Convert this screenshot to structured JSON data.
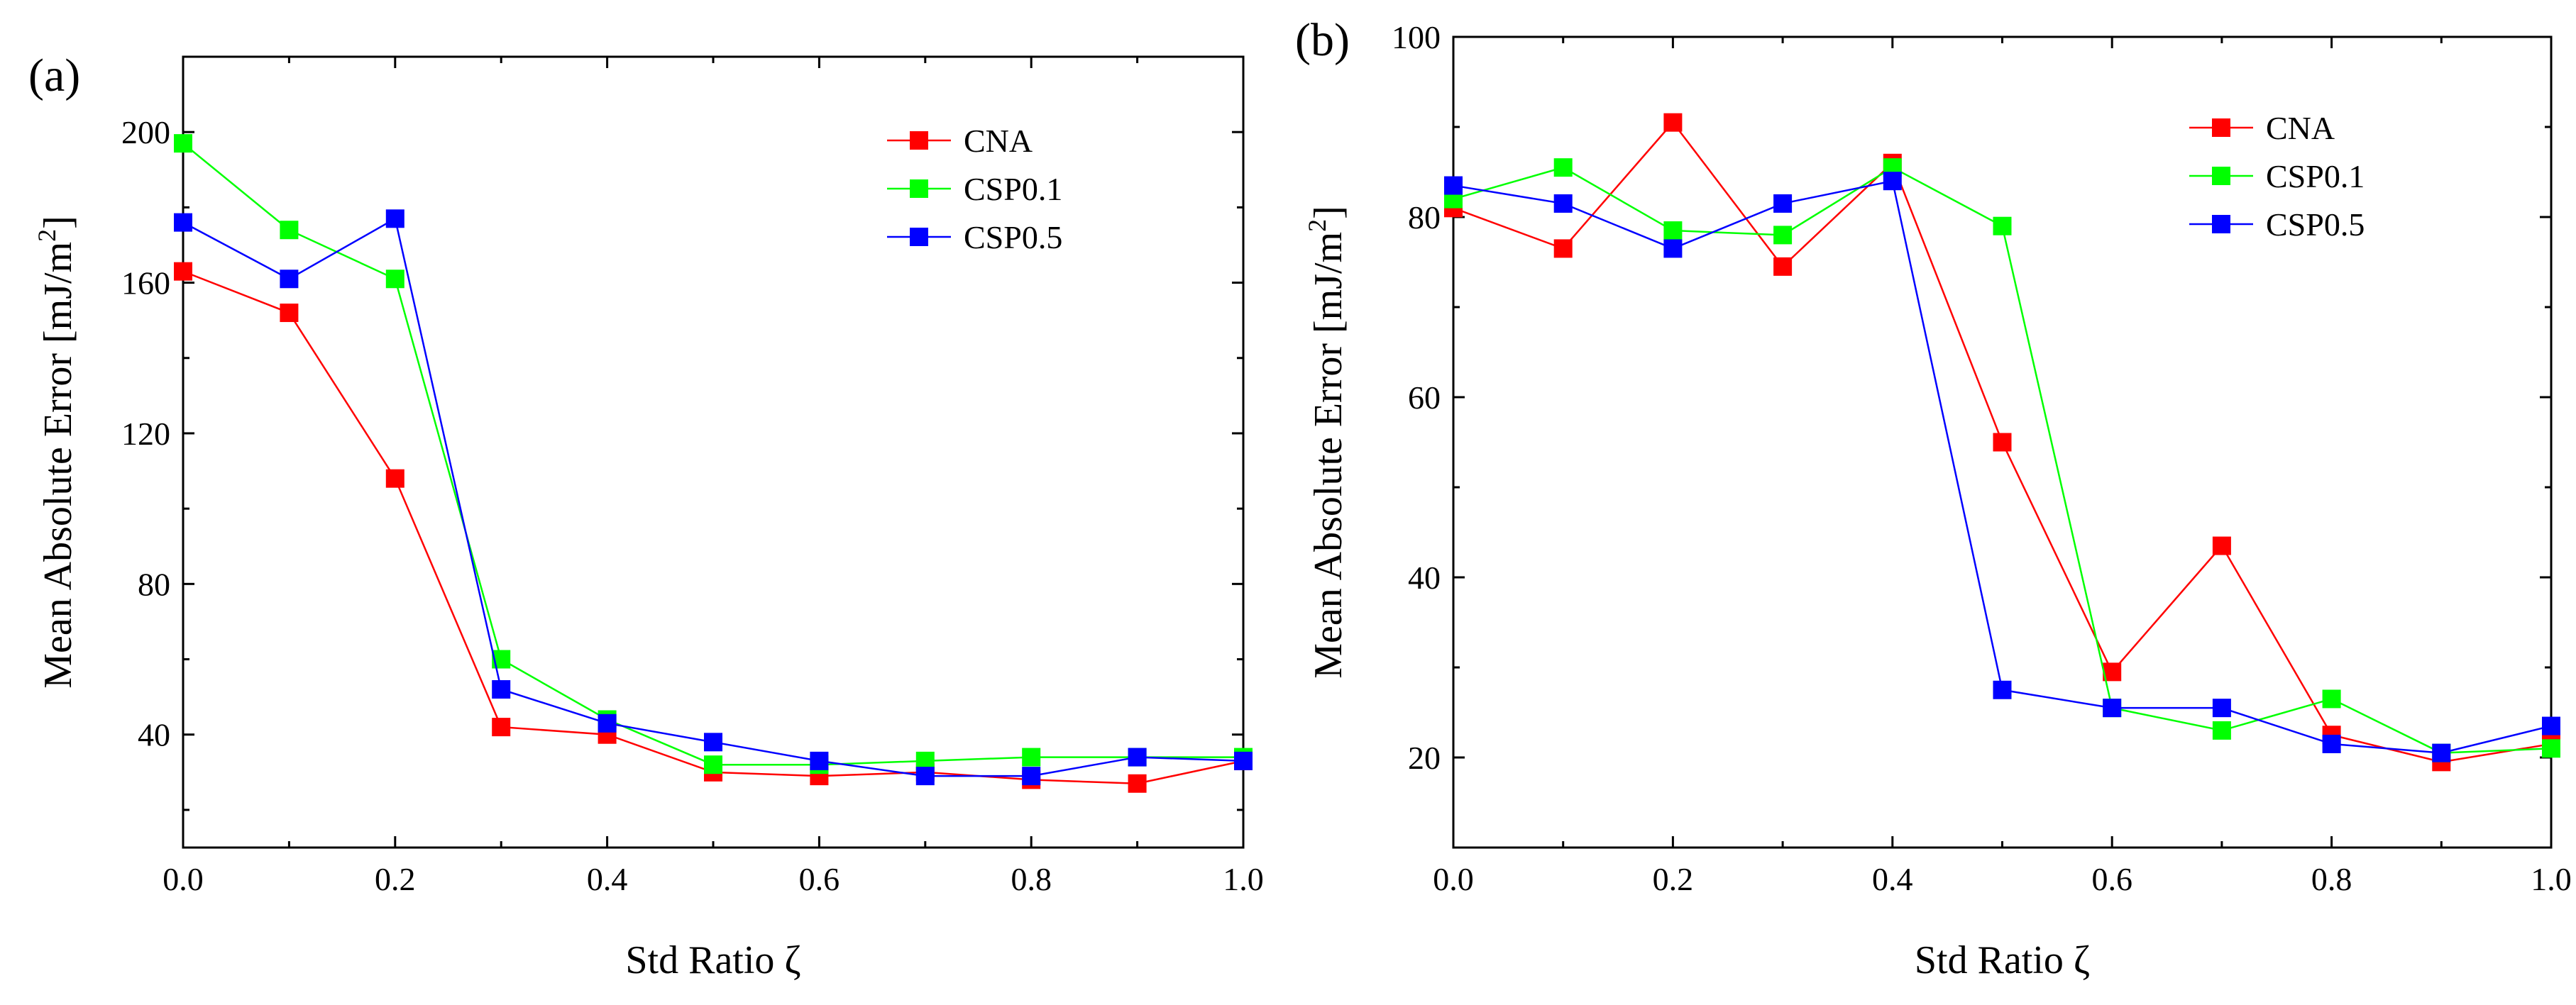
{
  "colors": {
    "CNA": "#ff0000",
    "CSP0.1": "#00ff00",
    "CSP0.5": "#0000ff",
    "axis": "#000000"
  },
  "chart_data": [
    {
      "type": "line",
      "panel_label": "(a)",
      "title": "",
      "xlabel": "Std Ratio ζ",
      "ylabel": "Mean Absolute Error [mJ/m²]",
      "ylabel_main": "Mean Absolute Error [mJ/m",
      "ylabel_sup": "2",
      "ylabel_end": "]",
      "xlim": [
        0.0,
        1.0
      ],
      "ylim": [
        10,
        220
      ],
      "xticks": [
        "0.0",
        "0.2",
        "0.4",
        "0.6",
        "0.8",
        "1.0"
      ],
      "yticks": [
        "40",
        "80",
        "120",
        "160",
        "200"
      ],
      "x": [
        0.0,
        0.1,
        0.2,
        0.3,
        0.4,
        0.5,
        0.6,
        0.7,
        0.8,
        0.9,
        1.0
      ],
      "series": [
        {
          "name": "CNA",
          "color": "#ff0000",
          "values": [
            163,
            152,
            108,
            42,
            40,
            30,
            29,
            30,
            28,
            27,
            33
          ]
        },
        {
          "name": "CSP0.1",
          "color": "#00ff00",
          "values": [
            197,
            174,
            161,
            60,
            44,
            32,
            32,
            33,
            34,
            34,
            34
          ]
        },
        {
          "name": "CSP0.5",
          "color": "#0000ff",
          "values": [
            176,
            161,
            177,
            52,
            43,
            38,
            33,
            29,
            29,
            34,
            33
          ]
        }
      ],
      "legend": [
        "CNA",
        "CSP0.1",
        "CSP0.5"
      ],
      "legend_position": "top-right"
    },
    {
      "type": "line",
      "panel_label": "(b)",
      "title": "",
      "xlabel": "Std Ratio ζ",
      "ylabel": "Mean Absolute Error [mJ/m²]",
      "ylabel_main": "Mean Absolute Error [mJ/m",
      "ylabel_sup": "2",
      "ylabel_end": "]",
      "xlim": [
        0.0,
        1.0
      ],
      "ylim": [
        10,
        100
      ],
      "xticks": [
        "0.0",
        "0.2",
        "0.4",
        "0.6",
        "0.8",
        "1.0"
      ],
      "yticks": [
        "20",
        "40",
        "60",
        "80",
        "100"
      ],
      "x": [
        0.0,
        0.1,
        0.2,
        0.3,
        0.4,
        0.5,
        0.6,
        0.7,
        0.8,
        0.9,
        1.0
      ],
      "series": [
        {
          "name": "CNA",
          "color": "#ff0000",
          "values": [
            81,
            76.5,
            90.5,
            74.5,
            86,
            55,
            29.5,
            43.5,
            22.5,
            19.5,
            21.5
          ]
        },
        {
          "name": "CSP0.1",
          "color": "#00ff00",
          "values": [
            82,
            85.5,
            78.5,
            78,
            85.5,
            79,
            25.5,
            23,
            26.5,
            20.5,
            21
          ]
        },
        {
          "name": "CSP0.5",
          "color": "#0000ff",
          "values": [
            83.5,
            81.5,
            76.5,
            81.5,
            84,
            27.5,
            25.5,
            25.5,
            21.5,
            20.5,
            23.5
          ]
        }
      ],
      "legend": [
        "CNA",
        "CSP0.1",
        "CSP0.5"
      ],
      "legend_position": "top-right"
    }
  ]
}
